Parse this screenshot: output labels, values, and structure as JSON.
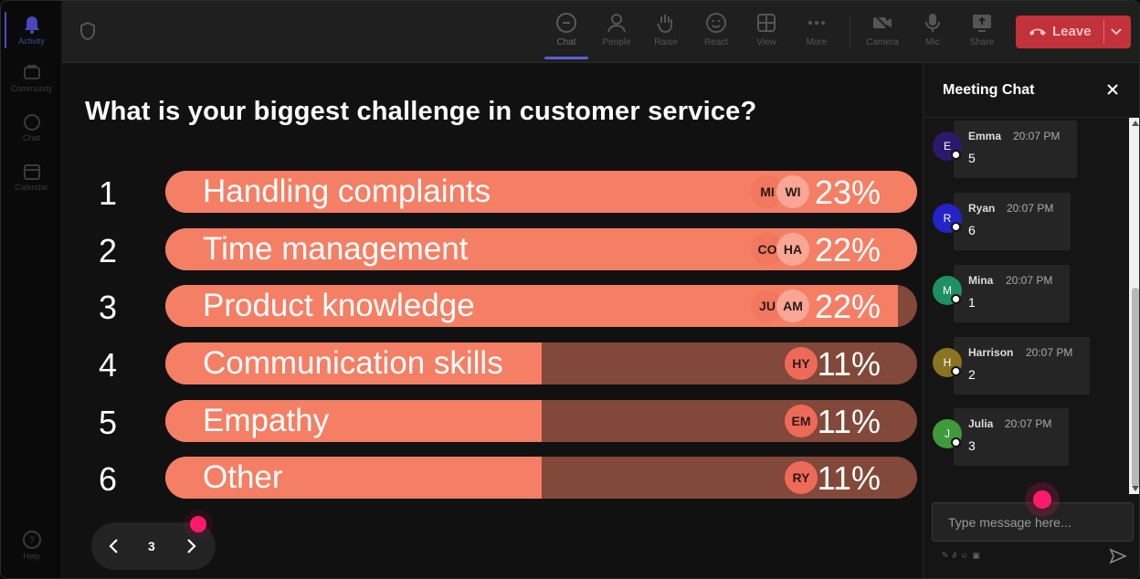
{
  "rail": {
    "items": [
      {
        "label": "Activity",
        "icon": "bell-icon"
      },
      {
        "label": "Community",
        "icon": "community-icon"
      },
      {
        "label": "Chat",
        "icon": "chat-icon"
      },
      {
        "label": "Calendar",
        "icon": "calendar-icon"
      },
      {
        "label": "Help",
        "icon": "help-icon"
      }
    ]
  },
  "toolbar": {
    "chat": "Chat",
    "people": "People",
    "raise": "Raise",
    "react": "React",
    "view": "View",
    "more": "More",
    "camera": "Camera",
    "mic": "Mic",
    "share": "Share",
    "leave": "Leave"
  },
  "poll": {
    "question": "What is your biggest challenge in customer service?",
    "options": [
      {
        "num": "1",
        "label": "Handling complaints",
        "percent_label": "23%",
        "percent": 23,
        "fill": 1.0,
        "avatars": [
          "MI",
          "WI"
        ]
      },
      {
        "num": "2",
        "label": "Time management",
        "percent_label": "22%",
        "percent": 22,
        "fill": 1.0,
        "avatars": [
          "CO",
          "HA"
        ]
      },
      {
        "num": "3",
        "label": "Product knowledge",
        "percent_label": "22%",
        "percent": 22,
        "fill": 0.975,
        "avatars": [
          "JU",
          "AM"
        ]
      },
      {
        "num": "4",
        "label": "Communication skills",
        "percent_label": "11%",
        "percent": 11,
        "fill": 0.5,
        "avatars": [
          "HY"
        ]
      },
      {
        "num": "5",
        "label": "Empathy",
        "percent_label": "11%",
        "percent": 11,
        "fill": 0.5,
        "avatars": [
          "EM"
        ]
      },
      {
        "num": "6",
        "label": "Other",
        "percent_label": "11%",
        "percent": 11,
        "fill": 0.5,
        "avatars": [
          "RY"
        ]
      }
    ]
  },
  "pager": {
    "page": "3"
  },
  "chat": {
    "title": "Meeting Chat",
    "messages": [
      {
        "initial": "E",
        "name": "Emma",
        "time": "20:07 PM",
        "text": "5",
        "color": "#2a1a6e"
      },
      {
        "initial": "R",
        "name": "Ryan",
        "time": "20:07 PM",
        "text": "6",
        "color": "#2323c8"
      },
      {
        "initial": "M",
        "name": "Mina",
        "time": "20:07 PM",
        "text": "1",
        "color": "#1f8f68"
      },
      {
        "initial": "H",
        "name": "Harrison",
        "time": "20:07 PM",
        "text": "2",
        "color": "#8a7420"
      },
      {
        "initial": "J",
        "name": "Julia",
        "time": "20:07 PM",
        "text": "3",
        "color": "#3f9a3a"
      }
    ],
    "input_placeholder": "Type message here..."
  },
  "colors": {
    "bar_fill": "#f47f65",
    "bar_track": "#82483a",
    "leave": "#c1323a",
    "accent": "#5c5cd6",
    "pointer": "#ff1a6b"
  }
}
